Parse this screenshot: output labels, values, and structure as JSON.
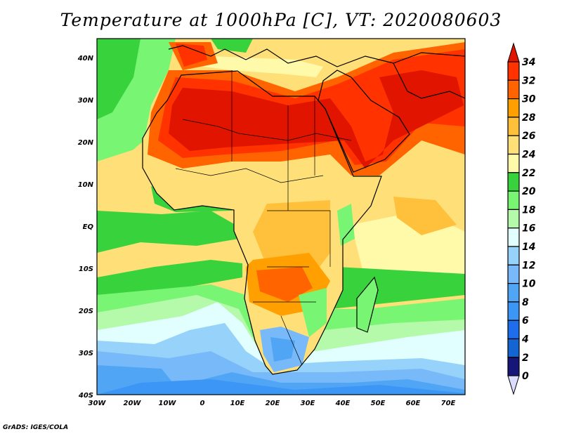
{
  "title": "Temperature at 1000hPa [C], VT: 2020080603",
  "credit": "GrADS: IGES/COLA",
  "map": {
    "lon_labels": [
      "30W",
      "20W",
      "10W",
      "0",
      "10E",
      "20E",
      "30E",
      "40E",
      "50E",
      "60E",
      "70E"
    ],
    "lat_labels": [
      "40N",
      "30N",
      "20N",
      "10N",
      "EQ",
      "10S",
      "20S",
      "30S",
      "40S"
    ],
    "lon_range": [
      -30,
      75
    ],
    "lat_range": [
      -40,
      44.5
    ]
  },
  "colorbar": {
    "labels": [
      "34",
      "32",
      "30",
      "28",
      "26",
      "24",
      "22",
      "20",
      "18",
      "16",
      "14",
      "12",
      "10",
      "8",
      "6",
      "4",
      "2",
      "0"
    ],
    "colors": {
      "above_34": "#e11400",
      "32_34": "#ff3200",
      "30_32": "#ff6400",
      "28_30": "#ffa000",
      "26_28": "#ffc03c",
      "24_26": "#ffe078",
      "22_24": "#fffaaa",
      "20_22": "#37d23c",
      "18_20": "#78f573",
      "16_18": "#b4faaa",
      "14_16": "#e1ffff",
      "12_14": "#96d2fa",
      "10_12": "#78b9fa",
      "8_10": "#50a5f5",
      "6_8": "#3c96f5",
      "4_6": "#1e6eeb",
      "2_4": "#1464d2",
      "0_2": "#161678",
      "below_0": "#dcdcff"
    }
  }
}
